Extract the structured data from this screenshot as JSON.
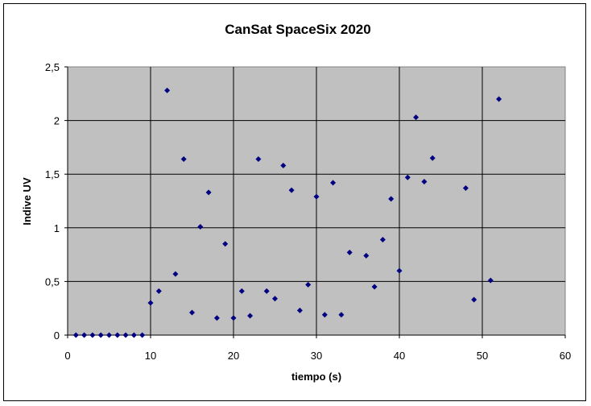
{
  "chart_data": {
    "type": "scatter",
    "title": "CanSat SpaceSix 2020",
    "xlabel": "tiempo (s)",
    "ylabel": "Indive UV",
    "xlim": [
      0,
      60
    ],
    "ylim": [
      0,
      2.5
    ],
    "x_ticks": [
      "0",
      "10",
      "20",
      "30",
      "40",
      "50",
      "60"
    ],
    "y_ticks": [
      "0",
      "0,5",
      "1",
      "1,5",
      "2",
      "2,5"
    ],
    "grid": true,
    "legend": "none",
    "marker": "diamond",
    "colors": {
      "marker": "#000080",
      "plot_background": "#c0c0c0",
      "grid": "#000000"
    },
    "series": [
      {
        "points": [
          [
            1,
            0
          ],
          [
            2,
            0
          ],
          [
            3,
            0
          ],
          [
            4,
            0
          ],
          [
            5,
            0
          ],
          [
            6,
            0
          ],
          [
            7,
            0
          ],
          [
            8,
            0
          ],
          [
            9,
            0
          ],
          [
            10,
            0.3
          ],
          [
            11,
            0.41
          ],
          [
            12,
            2.28
          ],
          [
            13,
            0.57
          ],
          [
            14,
            1.64
          ],
          [
            15,
            0.21
          ],
          [
            16,
            1.01
          ],
          [
            17,
            1.33
          ],
          [
            18,
            0.16
          ],
          [
            19,
            0.85
          ],
          [
            20,
            0.16
          ],
          [
            21,
            0.41
          ],
          [
            22,
            0.18
          ],
          [
            23,
            1.64
          ],
          [
            24,
            0.41
          ],
          [
            25,
            0.34
          ],
          [
            26,
            1.58
          ],
          [
            27,
            1.35
          ],
          [
            28,
            0.23
          ],
          [
            29,
            0.47
          ],
          [
            30,
            1.29
          ],
          [
            31,
            0.19
          ],
          [
            32,
            1.42
          ],
          [
            33,
            0.19
          ],
          [
            34,
            0.77
          ],
          [
            36,
            0.74
          ],
          [
            37,
            0.45
          ],
          [
            38,
            0.89
          ],
          [
            39,
            1.27
          ],
          [
            40,
            0.6
          ],
          [
            41,
            1.47
          ],
          [
            42,
            2.03
          ],
          [
            43,
            1.43
          ],
          [
            44,
            1.65
          ],
          [
            48,
            1.37
          ],
          [
            49,
            0.33
          ],
          [
            51,
            0.51
          ],
          [
            52,
            2.2
          ]
        ]
      }
    ]
  }
}
